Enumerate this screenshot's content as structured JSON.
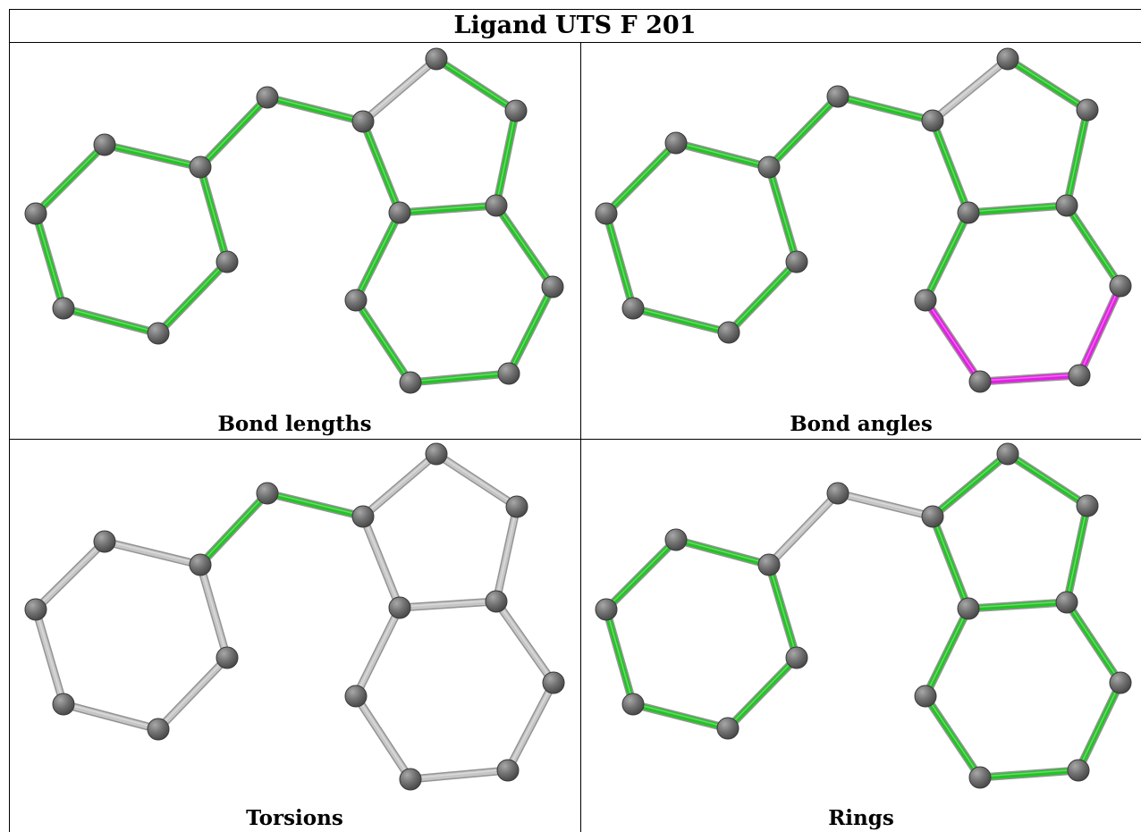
{
  "title": "Ligand UTS F 201",
  "colors": {
    "highlight_green": "#22c424",
    "highlight_magenta": "#e51ee5",
    "default_bond": "#c6c6c6",
    "atom": "#707070"
  },
  "panels": [
    {
      "caption": "Bond lengths",
      "bond_colors": [
        "green",
        "green",
        "green",
        "green",
        "green",
        "green",
        "green",
        "green",
        "green",
        "green",
        "grey",
        "green",
        "green",
        "green",
        "green",
        "green",
        "green",
        "green",
        "green"
      ]
    },
    {
      "caption": "Bond angles",
      "bond_colors": [
        "green",
        "green",
        "green",
        "green",
        "green",
        "green",
        "green",
        "green",
        "green",
        "green",
        "grey",
        "green",
        "green",
        "green",
        "magenta",
        "magenta",
        "magenta",
        "green",
        "magenta"
      ]
    },
    {
      "caption": "Torsions",
      "bond_colors": [
        "grey",
        "grey",
        "grey",
        "grey",
        "grey",
        "grey",
        "green",
        "green",
        "grey",
        "grey",
        "grey",
        "grey",
        "grey",
        "grey",
        "grey",
        "grey",
        "grey",
        "grey",
        "grey"
      ]
    },
    {
      "caption": "Rings",
      "bond_colors": [
        "green",
        "green",
        "green",
        "green",
        "green",
        "green",
        "grey",
        "grey",
        "green",
        "green",
        "green",
        "green",
        "green",
        "green",
        "green",
        "green",
        "green",
        "green",
        "green"
      ]
    }
  ]
}
